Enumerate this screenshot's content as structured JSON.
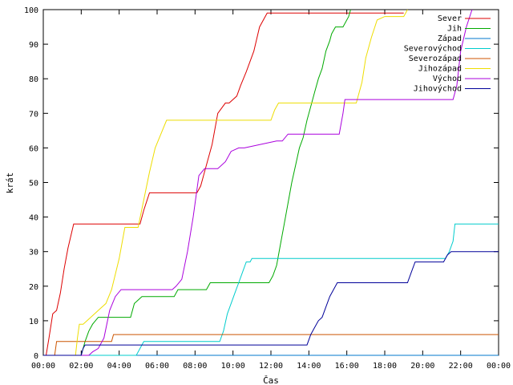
{
  "chart_data": {
    "type": "line",
    "title": "",
    "xlabel": "Čas",
    "ylabel": "krát",
    "xlim": [
      0,
      24
    ],
    "ylim": [
      0,
      100
    ],
    "x_ticks": [
      "00:00",
      "02:00",
      "04:00",
      "06:00",
      "08:00",
      "10:00",
      "12:00",
      "14:00",
      "16:00",
      "18:00",
      "20:00",
      "22:00",
      "00:00"
    ],
    "y_ticks": [
      "0",
      "10",
      "20",
      "30",
      "40",
      "50",
      "60",
      "70",
      "80",
      "90",
      "100"
    ],
    "grid": false,
    "legend_position": "top-right",
    "x_unit": "hours",
    "series": [
      {
        "name": "Sever",
        "color": "#dd0000",
        "x": [
          0.15,
          0.3,
          0.5,
          0.7,
          0.9,
          1.1,
          1.3,
          1.6,
          1.7,
          5.1,
          5.3,
          5.6,
          8.1,
          8.3,
          8.6,
          8.9,
          9.2,
          9.6,
          9.8,
          10.2,
          10.4,
          10.7,
          11.1,
          11.4,
          11.8,
          12.0,
          18.0,
          19.0
        ],
        "y": [
          0,
          5,
          12,
          13,
          18,
          25,
          31,
          38,
          38,
          38,
          42,
          47,
          47,
          49,
          55,
          61,
          70,
          73,
          73,
          75,
          78,
          82,
          88,
          95,
          99,
          99,
          99,
          99
        ]
      },
      {
        "name": "Jih",
        "color": "#00aa00",
        "x": [
          0.0,
          2.0,
          2.1,
          2.2,
          2.4,
          2.6,
          2.9,
          3.3,
          4.6,
          4.8,
          5.2,
          6.9,
          7.1,
          8.6,
          8.8,
          11.9,
          12.1,
          12.3,
          12.5,
          12.7,
          12.9,
          13.1,
          13.3,
          13.5,
          13.7,
          13.9,
          14.1,
          14.3,
          14.5,
          14.7,
          14.9,
          15.1,
          15.2,
          15.4,
          15.8,
          16.1,
          16.2
        ],
        "y": [
          0,
          0,
          2,
          4,
          7,
          9,
          11,
          11,
          11,
          15,
          17,
          17,
          19,
          19,
          21,
          21,
          23,
          26,
          32,
          38,
          44,
          50,
          55,
          60,
          63,
          68,
          72,
          76,
          80,
          83,
          88,
          91,
          93,
          95,
          95,
          98,
          100
        ]
      },
      {
        "name": "Západ",
        "color": "#0077cc",
        "x": [
          0.0,
          2.0,
          2.1,
          2.2,
          24.0
        ],
        "y": [
          0,
          0,
          0,
          0,
          0
        ]
      },
      {
        "name": "Severovýchod",
        "color": "#00cccc",
        "x": [
          0.0,
          4.9,
          5.1,
          5.3,
          9.3,
          9.5,
          9.7,
          9.9,
          10.1,
          10.3,
          10.5,
          10.7,
          10.9,
          11.0,
          11.3,
          21.2,
          21.4,
          21.6,
          21.7,
          22.0,
          24.0
        ],
        "y": [
          0,
          0,
          2,
          4,
          4,
          7,
          12,
          15,
          18,
          21,
          24,
          27,
          27,
          28,
          28,
          28,
          30,
          33,
          38,
          38,
          38
        ]
      },
      {
        "name": "Severozápad",
        "color": "#cc5500",
        "x": [
          0.0,
          0.6,
          0.7,
          3.6,
          3.7,
          24.0
        ],
        "y": [
          0,
          0,
          4,
          4,
          6,
          6
        ]
      },
      {
        "name": "Jihozápad",
        "color": "#eedd00",
        "x": [
          0.0,
          1.7,
          1.8,
          1.9,
          2.1,
          2.5,
          2.9,
          3.3,
          3.6,
          4.0,
          4.3,
          4.6,
          5.0,
          5.3,
          5.6,
          5.9,
          6.2,
          6.5,
          6.8,
          7.0,
          12.0,
          12.2,
          12.4,
          16.5,
          16.8,
          17.0,
          17.3,
          17.6,
          18.0,
          19.0,
          19.2
        ],
        "y": [
          0,
          0,
          5,
          9,
          9,
          11,
          13,
          15,
          19,
          28,
          37,
          37,
          37,
          45,
          53,
          60,
          64,
          68,
          68,
          68,
          68,
          71,
          73,
          73,
          79,
          86,
          92,
          97,
          98,
          98,
          100
        ]
      },
      {
        "name": "Východ",
        "color": "#aa00dd",
        "x": [
          0.0,
          2.4,
          2.6,
          2.9,
          3.2,
          3.5,
          3.8,
          4.1,
          6.8,
          7.0,
          7.3,
          7.6,
          7.9,
          8.2,
          8.5,
          9.2,
          9.6,
          9.9,
          10.3,
          10.6,
          12.3,
          12.6,
          12.9,
          15.6,
          15.8,
          15.9,
          21.6,
          21.8,
          22.0,
          22.3,
          22.6
        ],
        "y": [
          0,
          0,
          1,
          2,
          5,
          13,
          17,
          19,
          19,
          20,
          22,
          30,
          40,
          52,
          54,
          54,
          56,
          59,
          60,
          60,
          62,
          62,
          64,
          64,
          70,
          74,
          74,
          78,
          88,
          95,
          100
        ]
      },
      {
        "name": "Jihovýchod",
        "color": "#000099",
        "x": [
          0.0,
          2.0,
          2.1,
          2.2,
          2.3,
          13.9,
          14.1,
          14.3,
          14.5,
          14.7,
          14.9,
          15.1,
          15.3,
          15.5,
          15.7,
          19.2,
          19.4,
          19.6,
          19.8,
          21.1,
          21.3,
          21.5,
          22.0,
          24.0
        ],
        "y": [
          0,
          0,
          2,
          3,
          3,
          3,
          6,
          8,
          10,
          11,
          14,
          17,
          19,
          21,
          21,
          21,
          24,
          27,
          27,
          27,
          29,
          30,
          30,
          30
        ]
      }
    ]
  }
}
